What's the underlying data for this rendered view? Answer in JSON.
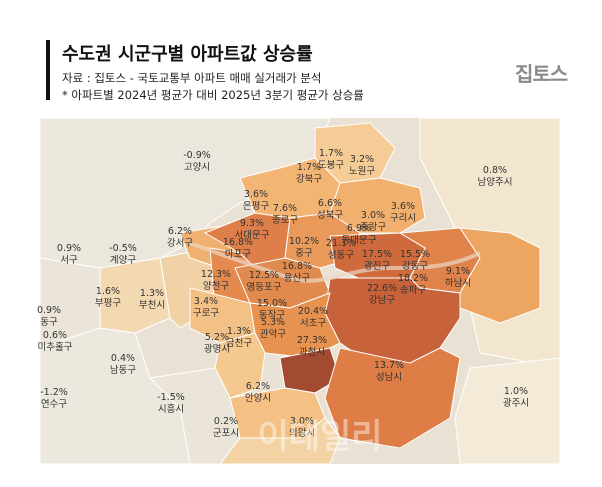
{
  "title": "수도권 시군구별 아파트값 상승률",
  "source_line": "자료 : 집토스 - 국토교통부 아파트 매매 실거래가 분석",
  "note_line": "* 아파트별 2024년 평균가 대비 2025년 3분기 평균가 상승률",
  "logo_text": "집토스",
  "watermark_text": "이데일리",
  "regions": [
    {
      "name": "고양시",
      "value": "-0.9%"
    },
    {
      "name": "도봉구",
      "value": "1.7%"
    },
    {
      "name": "노원구",
      "value": "3.2%"
    },
    {
      "name": "강북구",
      "value": "1.7%"
    },
    {
      "name": "남양주시",
      "value": "0.8%"
    },
    {
      "name": "은평구",
      "value": "3.6%"
    },
    {
      "name": "성북구",
      "value": "6.6%"
    },
    {
      "name": "종로구",
      "value": "7.6%"
    },
    {
      "name": "중랑구",
      "value": "3.0%"
    },
    {
      "name": "구리시",
      "value": "3.6%"
    },
    {
      "name": "서대문구",
      "value": "9.3%"
    },
    {
      "name": "동대문구",
      "value": "6.9%"
    },
    {
      "name": "서구",
      "value": "0.9%"
    },
    {
      "name": "계양구",
      "value": "-0.5%"
    },
    {
      "name": "강서구",
      "value": "6.2%"
    },
    {
      "name": "마포구",
      "value": "16.8%"
    },
    {
      "name": "중구",
      "value": "10.2%"
    },
    {
      "name": "성동구",
      "value": "21.1%"
    },
    {
      "name": "광진구",
      "value": "17.5%"
    },
    {
      "name": "강동구",
      "value": "15.5%"
    },
    {
      "name": "용산구",
      "value": "16.8%"
    },
    {
      "name": "하남시",
      "value": "9.1%"
    },
    {
      "name": "양천구",
      "value": "12.3%"
    },
    {
      "name": "영등포구",
      "value": "12.5%"
    },
    {
      "name": "송파구",
      "value": "18.2%"
    },
    {
      "name": "부평구",
      "value": "1.6%"
    },
    {
      "name": "부천시",
      "value": "1.3%"
    },
    {
      "name": "구로구",
      "value": "3.4%"
    },
    {
      "name": "동작구",
      "value": "15.0%"
    },
    {
      "name": "강남구",
      "value": "22.6%"
    },
    {
      "name": "동구",
      "value": "0.9%"
    },
    {
      "name": "서초구",
      "value": "20.4%"
    },
    {
      "name": "금천구",
      "value": "1.3%"
    },
    {
      "name": "관악구",
      "value": "5.3%"
    },
    {
      "name": "미추홀구",
      "value": "0.6%"
    },
    {
      "name": "광명시",
      "value": "5.2%"
    },
    {
      "name": "과천시",
      "value": "27.3%"
    },
    {
      "name": "남동구",
      "value": "0.4%"
    },
    {
      "name": "성남시",
      "value": "13.7%"
    },
    {
      "name": "연수구",
      "value": "-1.2%"
    },
    {
      "name": "시흥시",
      "value": "-1.5%"
    },
    {
      "name": "안양시",
      "value": "6.2%"
    },
    {
      "name": "광주시",
      "value": "1.0%"
    },
    {
      "name": "군포시",
      "value": "0.2%"
    },
    {
      "name": "의왕시",
      "value": "3.0%"
    }
  ]
}
